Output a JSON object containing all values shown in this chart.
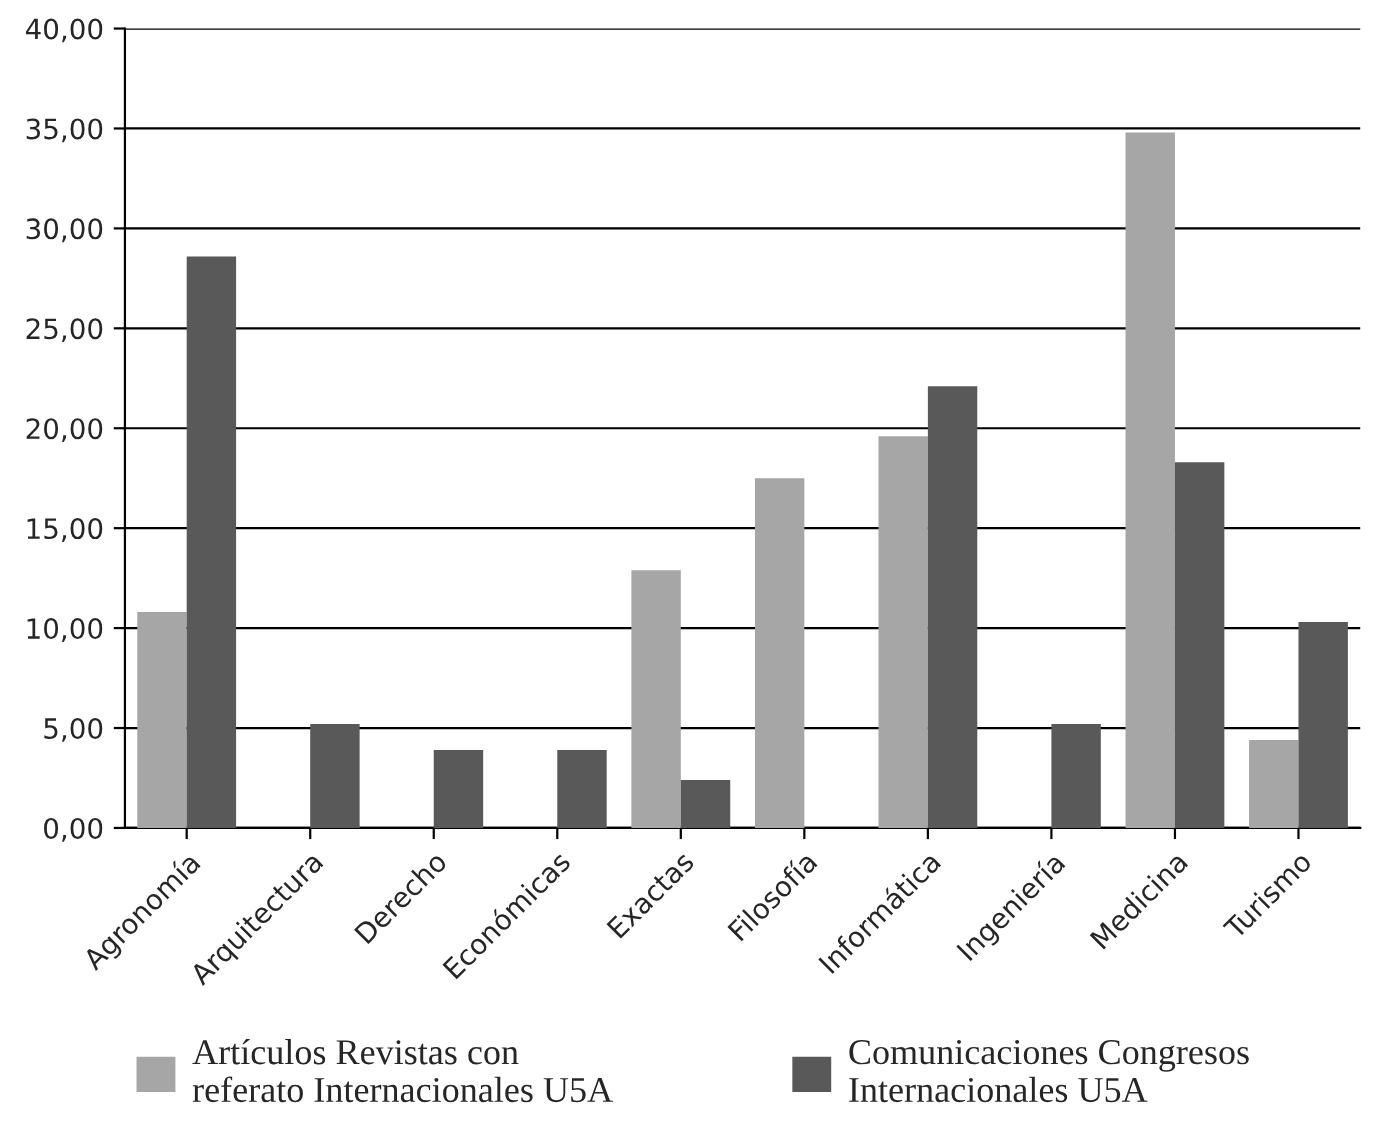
{
  "chart_data": {
    "type": "bar",
    "categories": [
      "Agronomía",
      "Arquitectura",
      "Derecho",
      "Económicas",
      "Exactas",
      "Filosofía",
      "Informática",
      "Ingeniería",
      "Medicina",
      "Turismo"
    ],
    "series": [
      {
        "name": "Artículos Revistas con\nreferato Internacionales U5A",
        "color": "#a6a6a6",
        "values": [
          10.8,
          0,
          0,
          0,
          12.9,
          17.5,
          19.6,
          0,
          34.8,
          4.4
        ]
      },
      {
        "name": "Comunicaciones Congresos\nInternacionales U5A",
        "color": "#595959",
        "values": [
          28.6,
          5.2,
          3.9,
          3.9,
          2.4,
          0,
          22.1,
          5.2,
          18.3,
          10.3
        ]
      }
    ],
    "ylim": [
      0,
      40
    ],
    "yticks": [
      {
        "value": 0,
        "label": "0,00"
      },
      {
        "value": 5,
        "label": "5,00"
      },
      {
        "value": 10,
        "label": "10,00"
      },
      {
        "value": 15,
        "label": "15,00"
      },
      {
        "value": 20,
        "label": "20,00"
      },
      {
        "value": 25,
        "label": "25,00"
      },
      {
        "value": 30,
        "label": "30,00"
      },
      {
        "value": 35,
        "label": "35,00"
      },
      {
        "value": 40,
        "label": "40,00"
      }
    ],
    "grid": "y",
    "legend": "bottom"
  }
}
